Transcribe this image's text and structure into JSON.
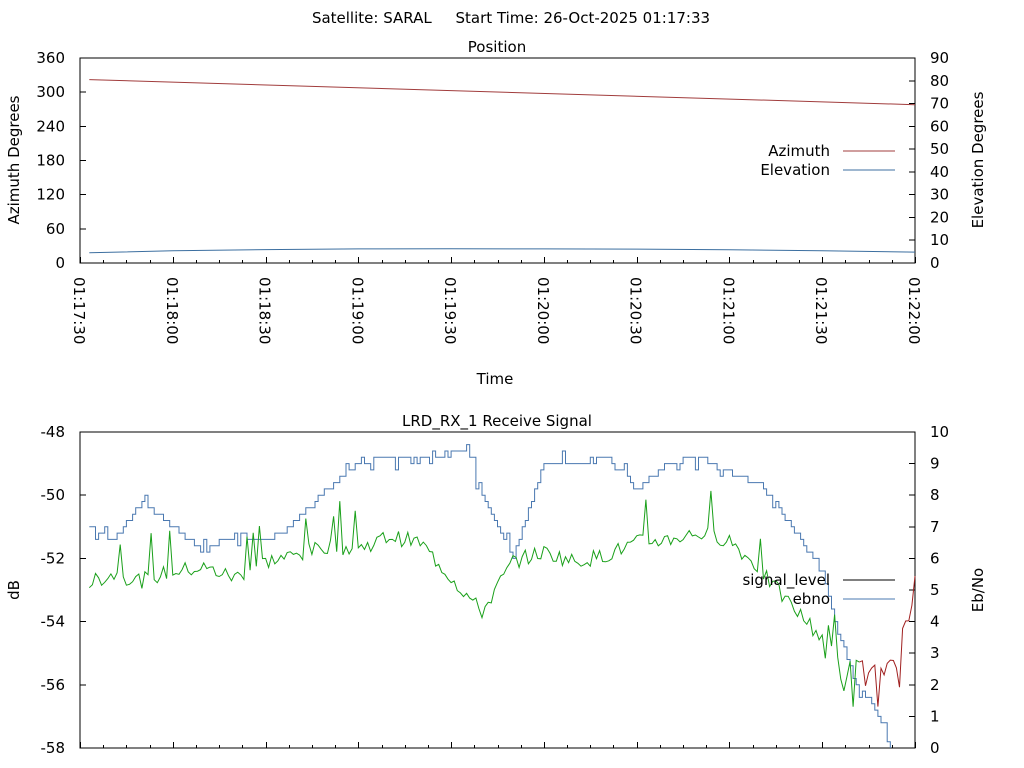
{
  "header": {
    "title": "Satellite: SARAL     Start Time: 26-Oct-2025 01:17:33"
  },
  "colors": {
    "azimuth": "#a13c3c",
    "elevation": "#3c6fa0",
    "signal_level": "#000000",
    "ebno": "#4a78b0",
    "signal_green": "#1aa01a",
    "signal_red": "#a02020"
  },
  "chart_data": [
    {
      "type": "line",
      "title": "Position",
      "xlabel": "Time",
      "ylabel": "Azimuth Degrees",
      "y2label": "Elevation Degrees",
      "x_ticks": [
        "01:17:30",
        "01:18:00",
        "01:18:30",
        "01:19:00",
        "01:19:30",
        "01:20:00",
        "01:20:30",
        "01:21:00",
        "01:21:30",
        "01:22:00"
      ],
      "y_ticks": [
        "0",
        "60",
        "120",
        "180",
        "240",
        "300",
        "360"
      ],
      "y2_ticks": [
        "0",
        "10",
        "20",
        "30",
        "40",
        "50",
        "60",
        "70",
        "80",
        "90"
      ],
      "xlim": [
        "01:17:30",
        "01:22:00"
      ],
      "ylim": [
        0,
        360
      ],
      "y2lim": [
        0,
        90
      ],
      "legend_position": "right",
      "series": [
        {
          "name": "Azimuth",
          "axis": "left",
          "x": [
            "01:17:33",
            "01:22:00"
          ],
          "y": [
            322,
            278
          ]
        },
        {
          "name": "Elevation",
          "axis": "right",
          "x": [
            "01:17:33",
            "01:18:00",
            "01:18:30",
            "01:19:00",
            "01:19:30",
            "01:20:00",
            "01:20:30",
            "01:21:00",
            "01:21:30",
            "01:22:00"
          ],
          "y": [
            4.5,
            5.4,
            5.9,
            6.2,
            6.3,
            6.2,
            6.1,
            5.8,
            5.4,
            4.8
          ]
        }
      ]
    },
    {
      "type": "line",
      "title": "LRD_RX_1 Receive Signal",
      "ylabel": "dB",
      "y2label": "Eb/No",
      "y_ticks": [
        "-58",
        "-56",
        "-54",
        "-52",
        "-50",
        "-48"
      ],
      "y2_ticks": [
        "0",
        "1",
        "2",
        "3",
        "4",
        "5",
        "6",
        "7",
        "8",
        "9",
        "10"
      ],
      "xlim": [
        "01:17:30",
        "01:22:00"
      ],
      "ylim": [
        -58,
        -48
      ],
      "y2lim": [
        0,
        10
      ],
      "legend_position": "right",
      "series": [
        {
          "name": "signal_level",
          "axis": "left",
          "color_segments": [
            "green",
            "red"
          ],
          "x_seconds": [
            3,
            10,
            20,
            30,
            40,
            50,
            60,
            70,
            80,
            90,
            100,
            110,
            120,
            130,
            140,
            150,
            160,
            170,
            180,
            190,
            200,
            210,
            220,
            230,
            240,
            245,
            250,
            255,
            260,
            265,
            270
          ],
          "y": [
            -52.8,
            -52.5,
            -52.7,
            -52.4,
            -52.3,
            -52.6,
            -52.1,
            -51.9,
            -51.6,
            -51.7,
            -51.3,
            -51.5,
            -52.6,
            -53.7,
            -52.1,
            -51.8,
            -52.1,
            -51.9,
            -51.5,
            -51.4,
            -51.2,
            -51.4,
            -52.4,
            -53.5,
            -54.5,
            -55.3,
            -56.0,
            -55.5,
            -56.2,
            -55.3,
            -53.3
          ]
        },
        {
          "name": "ebno",
          "axis": "right",
          "x_seconds": [
            3,
            10,
            20,
            30,
            40,
            50,
            60,
            70,
            80,
            90,
            100,
            110,
            120,
            125,
            130,
            140,
            150,
            160,
            170,
            180,
            190,
            200,
            210,
            220,
            230,
            240,
            245,
            250,
            255,
            260,
            262
          ],
          "y": [
            7.0,
            6.5,
            7.8,
            7.0,
            6.2,
            6.8,
            6.5,
            7.2,
            8.2,
            9.0,
            9.2,
            9.2,
            9.3,
            9.5,
            8.0,
            6.0,
            9.0,
            9.0,
            9.2,
            8.2,
            9.0,
            9.2,
            8.7,
            8.3,
            7.0,
            5.5,
            3.7,
            2.2,
            1.5,
            0.5,
            0.0
          ]
        }
      ]
    }
  ]
}
